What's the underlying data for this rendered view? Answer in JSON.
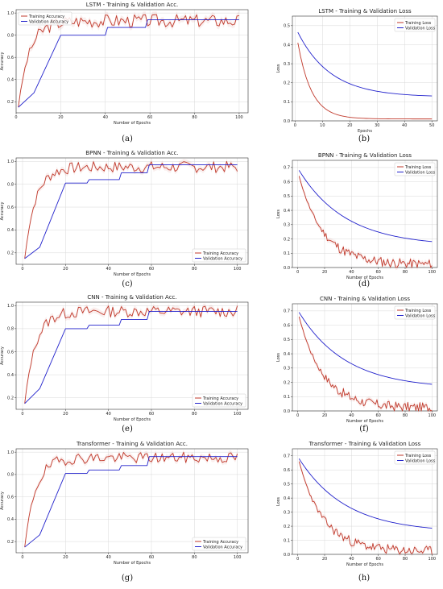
{
  "colors": {
    "train": "#c0392b",
    "val": "#2222cc",
    "grid": "#d9d9d9",
    "axis": "#333333"
  },
  "figure": {
    "captions": [
      "(a)",
      "(b)",
      "(c)",
      "(d)",
      "(e)",
      "(f)",
      "(g)",
      "(h)"
    ]
  },
  "chart_data": [
    {
      "type": "line",
      "kind": "acc",
      "caption": "(a)",
      "title": "LSTM - Training & Validation Acc.",
      "xlabel": "Number of Epochs",
      "ylabel": "Accuracy",
      "xlim": [
        0,
        104
      ],
      "ylim": [
        0.1,
        1.03
      ],
      "xticks": [
        0,
        20,
        40,
        60,
        80,
        100
      ],
      "yticks": [
        0.2,
        0.4,
        0.6,
        0.8,
        1.0
      ],
      "xtick_labels": [
        "0",
        "20",
        "40",
        "60",
        "80",
        "100"
      ],
      "ytick_labels": [
        "0.2",
        "0.4",
        "0.6",
        "0.8",
        "1.0"
      ],
      "legend": "top-left",
      "grid": true,
      "epochs": 100,
      "series": [
        {
          "name": "Training Accuracy",
          "color": "#c0392b",
          "start": 0.15,
          "end": 0.93,
          "tau": 5,
          "noise": 0.06,
          "seed": 3
        },
        {
          "name": "Validation Accuracy",
          "color": "#2222cc",
          "points": [
            [
              1,
              0.15
            ],
            [
              8,
              0.28
            ],
            [
              20,
              0.8
            ],
            [
              40,
              0.8
            ],
            [
              41,
              0.87
            ],
            [
              58,
              0.87
            ],
            [
              59,
              0.94
            ],
            [
              100,
              0.94
            ]
          ]
        }
      ]
    },
    {
      "type": "line",
      "kind": "loss",
      "caption": "(b)",
      "title": "LSTM - Training & Validation Loss",
      "xlabel": "Epochs",
      "ylabel": "Loss",
      "xlim": [
        -1,
        52
      ],
      "ylim": [
        0,
        0.55
      ],
      "xticks": [
        0,
        10,
        20,
        30,
        40,
        50
      ],
      "yticks": [
        0.0,
        0.1,
        0.2,
        0.3,
        0.4,
        0.5
      ],
      "xtick_labels": [
        "0",
        "10",
        "20",
        "30",
        "40",
        "50"
      ],
      "ytick_labels": [
        "0.0",
        "0.1",
        "0.2",
        "0.3",
        "0.4",
        "0.5"
      ],
      "legend": "top-right",
      "grid": true,
      "epochs": 50,
      "series": [
        {
          "name": "Training Loss",
          "color": "#c0392b",
          "start": 0.41,
          "end": 0.01,
          "tau": 5,
          "noise": 0
        },
        {
          "name": "Validation Loss",
          "color": "#2222cc",
          "start": 0.465,
          "end": 0.125,
          "tau": 12,
          "noise": 0
        }
      ]
    },
    {
      "type": "line",
      "kind": "acc",
      "caption": "(c)",
      "title": "BPNN - Training & Validation Acc.",
      "xlabel": "Number of Epochs",
      "ylabel": "Accuracy",
      "xlim": [
        -3,
        105
      ],
      "ylim": [
        0.1,
        1.03
      ],
      "xticks": [
        0,
        20,
        40,
        60,
        80,
        100
      ],
      "yticks": [
        0.2,
        0.4,
        0.6,
        0.8,
        1.0
      ],
      "xtick_labels": [
        "0",
        "20",
        "40",
        "60",
        "80",
        "100"
      ],
      "ytick_labels": [
        "0.2",
        "0.4",
        "0.6",
        "0.8",
        "1.0"
      ],
      "legend": "bottom-right",
      "grid": true,
      "epochs": 100,
      "series": [
        {
          "name": "Training Accuracy",
          "color": "#c0392b",
          "start": 0.15,
          "end": 0.95,
          "tau": 5,
          "noise": 0.05,
          "seed": 7
        },
        {
          "name": "Validation Accuracy",
          "color": "#2222cc",
          "points": [
            [
              1,
              0.15
            ],
            [
              8,
              0.25
            ],
            [
              20,
              0.81
            ],
            [
              30,
              0.81
            ],
            [
              31,
              0.84
            ],
            [
              45,
              0.84
            ],
            [
              46,
              0.9
            ],
            [
              58,
              0.9
            ],
            [
              59,
              0.97
            ],
            [
              100,
              0.97
            ]
          ]
        }
      ]
    },
    {
      "type": "line",
      "kind": "loss",
      "caption": "(d)",
      "title": "BPNN - Training & Validation Loss",
      "xlabel": "Number of Epochs",
      "ylabel": "Loss",
      "xlim": [
        -4,
        104
      ],
      "ylim": [
        0,
        0.75
      ],
      "xticks": [
        0,
        20,
        40,
        60,
        80,
        100
      ],
      "yticks": [
        0.0,
        0.1,
        0.2,
        0.3,
        0.4,
        0.5,
        0.6,
        0.7
      ],
      "xtick_labels": [
        "0",
        "20",
        "40",
        "60",
        "80",
        "100"
      ],
      "ytick_labels": [
        "0.0",
        "0.1",
        "0.2",
        "0.3",
        "0.4",
        "0.5",
        "0.6",
        "0.7"
      ],
      "legend": "top-right",
      "grid": true,
      "epochs": 100,
      "series": [
        {
          "name": "Training Loss",
          "color": "#c0392b",
          "start": 0.64,
          "end": 0.02,
          "tau": 18,
          "noise": 0.035,
          "seed": 11
        },
        {
          "name": "Validation Loss",
          "color": "#2222cc",
          "start": 0.68,
          "end": 0.15,
          "tau": 35,
          "noise": 0
        }
      ]
    },
    {
      "type": "line",
      "kind": "acc",
      "caption": "(e)",
      "title": "CNN - Training & Validation Acc.",
      "xlabel": "Number of Epochs",
      "ylabel": "Accuracy",
      "xlim": [
        -3,
        105
      ],
      "ylim": [
        0.1,
        1.03
      ],
      "xticks": [
        0,
        20,
        40,
        60,
        80,
        100
      ],
      "yticks": [
        0.2,
        0.4,
        0.6,
        0.8,
        1.0
      ],
      "xtick_labels": [
        "0",
        "20",
        "40",
        "60",
        "80",
        "100"
      ],
      "ytick_labels": [
        "0.2",
        "0.4",
        "0.6",
        "0.8",
        "1.0"
      ],
      "legend": "bottom-right",
      "grid": true,
      "epochs": 100,
      "series": [
        {
          "name": "Training Accuracy",
          "color": "#c0392b",
          "start": 0.15,
          "end": 0.95,
          "tau": 5,
          "noise": 0.05,
          "seed": 13
        },
        {
          "name": "Validation Accuracy",
          "color": "#2222cc",
          "points": [
            [
              1,
              0.15
            ],
            [
              8,
              0.28
            ],
            [
              20,
              0.8
            ],
            [
              30,
              0.8
            ],
            [
              31,
              0.83
            ],
            [
              45,
              0.83
            ],
            [
              46,
              0.88
            ],
            [
              58,
              0.88
            ],
            [
              59,
              0.95
            ],
            [
              100,
              0.95
            ]
          ]
        }
      ]
    },
    {
      "type": "line",
      "kind": "loss",
      "caption": "(f)",
      "title": "CNN - Training & Validation Loss",
      "xlabel": "Number of Epochs",
      "ylabel": "Loss",
      "xlim": [
        -4,
        104
      ],
      "ylim": [
        0,
        0.75
      ],
      "xticks": [
        0,
        20,
        40,
        60,
        80,
        100
      ],
      "yticks": [
        0.0,
        0.1,
        0.2,
        0.3,
        0.4,
        0.5,
        0.6,
        0.7
      ],
      "xtick_labels": [
        "0",
        "20",
        "40",
        "60",
        "80",
        "100"
      ],
      "ytick_labels": [
        "0.0",
        "0.1",
        "0.2",
        "0.3",
        "0.4",
        "0.5",
        "0.6",
        "0.7"
      ],
      "legend": "top-right",
      "grid": true,
      "epochs": 100,
      "series": [
        {
          "name": "Training Loss",
          "color": "#c0392b",
          "start": 0.66,
          "end": 0.02,
          "tau": 18,
          "noise": 0.035,
          "seed": 17
        },
        {
          "name": "Validation Loss",
          "color": "#2222cc",
          "start": 0.69,
          "end": 0.155,
          "tau": 35,
          "noise": 0
        }
      ]
    },
    {
      "type": "line",
      "kind": "acc",
      "caption": "(g)",
      "title": "Transformer - Training & Validation Acc.",
      "xlabel": "Number of Epochs",
      "ylabel": "Accuracy",
      "xlim": [
        -3,
        105
      ],
      "ylim": [
        0.1,
        1.03
      ],
      "xticks": [
        0,
        20,
        40,
        60,
        80,
        100
      ],
      "yticks": [
        0.2,
        0.4,
        0.6,
        0.8,
        1.0
      ],
      "xtick_labels": [
        "0",
        "20",
        "40",
        "60",
        "80",
        "100"
      ],
      "ytick_labels": [
        "0.2",
        "0.4",
        "0.6",
        "0.8",
        "1.0"
      ],
      "legend": "bottom-right",
      "grid": true,
      "epochs": 100,
      "series": [
        {
          "name": "Training Accuracy",
          "color": "#c0392b",
          "start": 0.15,
          "end": 0.95,
          "tau": 5,
          "noise": 0.05,
          "seed": 19
        },
        {
          "name": "Validation Accuracy",
          "color": "#2222cc",
          "points": [
            [
              1,
              0.15
            ],
            [
              8,
              0.26
            ],
            [
              20,
              0.81
            ],
            [
              30,
              0.81
            ],
            [
              31,
              0.84
            ],
            [
              45,
              0.84
            ],
            [
              46,
              0.88
            ],
            [
              58,
              0.88
            ],
            [
              59,
              0.96
            ],
            [
              100,
              0.96
            ]
          ]
        }
      ]
    },
    {
      "type": "line",
      "kind": "loss",
      "caption": "(h)",
      "title": "Transformer - Training & Validation Loss",
      "xlabel": "Number of Epochs",
      "ylabel": "Loss",
      "xlim": [
        -4,
        104
      ],
      "ylim": [
        0,
        0.75
      ],
      "xticks": [
        0,
        20,
        40,
        60,
        80,
        100
      ],
      "yticks": [
        0.0,
        0.1,
        0.2,
        0.3,
        0.4,
        0.5,
        0.6,
        0.7
      ],
      "xtick_labels": [
        "0",
        "20",
        "40",
        "60",
        "80",
        "100"
      ],
      "ytick_labels": [
        "0.0",
        "0.1",
        "0.2",
        "0.3",
        "0.4",
        "0.5",
        "0.6",
        "0.7"
      ],
      "legend": "top-right",
      "grid": true,
      "epochs": 100,
      "series": [
        {
          "name": "Training Loss",
          "color": "#c0392b",
          "start": 0.66,
          "end": 0.02,
          "tau": 18,
          "noise": 0.035,
          "seed": 23
        },
        {
          "name": "Validation Loss",
          "color": "#2222cc",
          "start": 0.68,
          "end": 0.155,
          "tau": 35,
          "noise": 0
        }
      ]
    }
  ]
}
